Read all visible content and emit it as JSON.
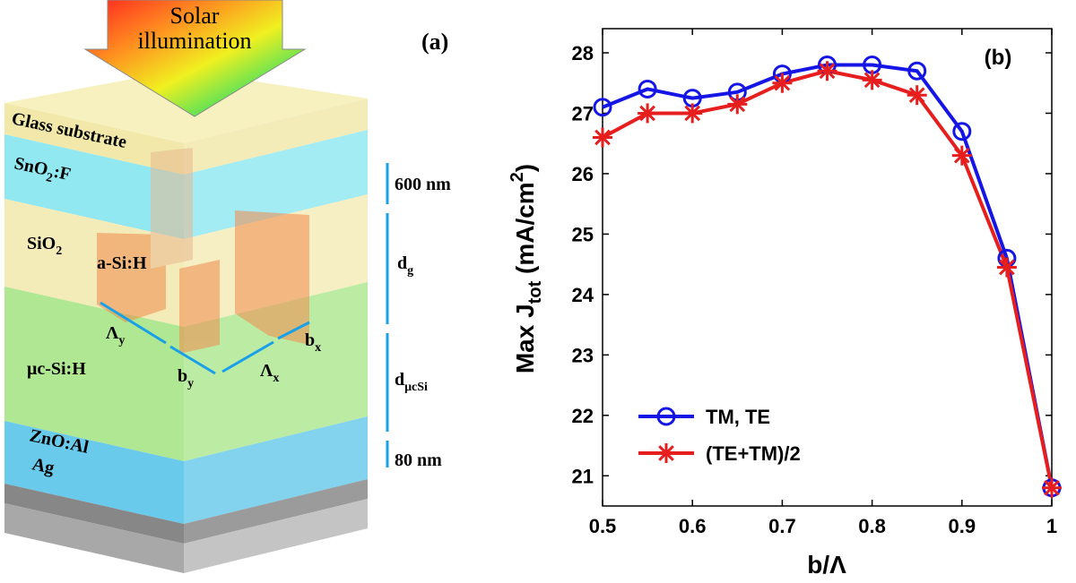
{
  "chart_data": {
    "type": "line",
    "panel_label": "(b)",
    "xlabel": "b/Λ",
    "ylabel": [
      "Max J",
      "tot",
      " (mA/cm",
      "2",
      ")"
    ],
    "x": [
      0.5,
      0.55,
      0.6,
      0.65,
      0.7,
      0.75,
      0.8,
      0.85,
      0.9,
      0.95,
      1
    ],
    "series": [
      {
        "name": "TM, TE",
        "color": "#1515e6",
        "marker": "circle",
        "values": [
          27.1,
          27.4,
          27.25,
          27.35,
          27.65,
          27.8,
          27.8,
          27.7,
          26.7,
          24.6,
          20.8
        ]
      },
      {
        "name": "(TE+TM)/2",
        "color": "#e61e1e",
        "marker": "asterisk",
        "values": [
          26.6,
          27.0,
          27.0,
          27.15,
          27.5,
          27.7,
          27.55,
          27.3,
          26.3,
          24.45,
          20.8
        ]
      }
    ],
    "xlim": [
      0.5,
      1
    ],
    "xticks": [
      0.5,
      0.6,
      0.7,
      0.8,
      0.9,
      1
    ],
    "ylim": [
      20.5,
      28.4
    ],
    "yticks": [
      21,
      22,
      23,
      24,
      25,
      26,
      27,
      28
    ],
    "legend": "lower left",
    "grid": false
  },
  "diagram": {
    "panel_label": "(a)",
    "arrow": [
      "Solar",
      "illumination"
    ],
    "labels": [
      [
        "Glass substrate"
      ],
      [
        "SnO",
        "2",
        ":F"
      ],
      [
        "SiO",
        "2"
      ],
      [
        "a-Si:H"
      ],
      [
        "μc-Si:H"
      ],
      [
        "ZnO:Al"
      ],
      [
        "Ag"
      ],
      [
        "600 nm"
      ],
      [
        "d",
        "g"
      ],
      [
        "d",
        "μcSi"
      ],
      [
        "80 nm"
      ],
      [
        "Λ",
        "y"
      ],
      [
        "b",
        "y"
      ],
      [
        "Λ",
        "x"
      ],
      [
        "b",
        "x"
      ]
    ]
  }
}
